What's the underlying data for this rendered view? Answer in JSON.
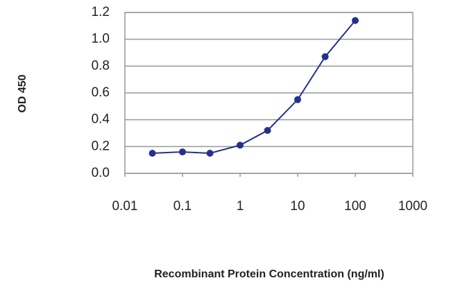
{
  "chart_data": {
    "type": "line",
    "y_label": "OD 450",
    "x_label": "Recombinant Protein Concentration (ng/ml)",
    "x": [
      0.03,
      0.1,
      0.3,
      1,
      3,
      10,
      30,
      100
    ],
    "series": [
      {
        "name": "OD 450",
        "color": "#26308f",
        "values": [
          0.15,
          0.16,
          0.15,
          0.21,
          0.32,
          0.55,
          0.87,
          1.14
        ]
      }
    ],
    "xlim": [
      0.01,
      1000
    ],
    "xticks": [
      0.01,
      0.1,
      1,
      10,
      100,
      1000
    ],
    "xscale": "log",
    "ylim": [
      0,
      1.2
    ],
    "yticks": [
      {
        "value": 0,
        "label": "0.0"
      },
      0.2,
      0.4,
      0.6,
      0.8,
      {
        "value": 1,
        "label": "1.0"
      },
      1.2
    ],
    "grid": true
  }
}
